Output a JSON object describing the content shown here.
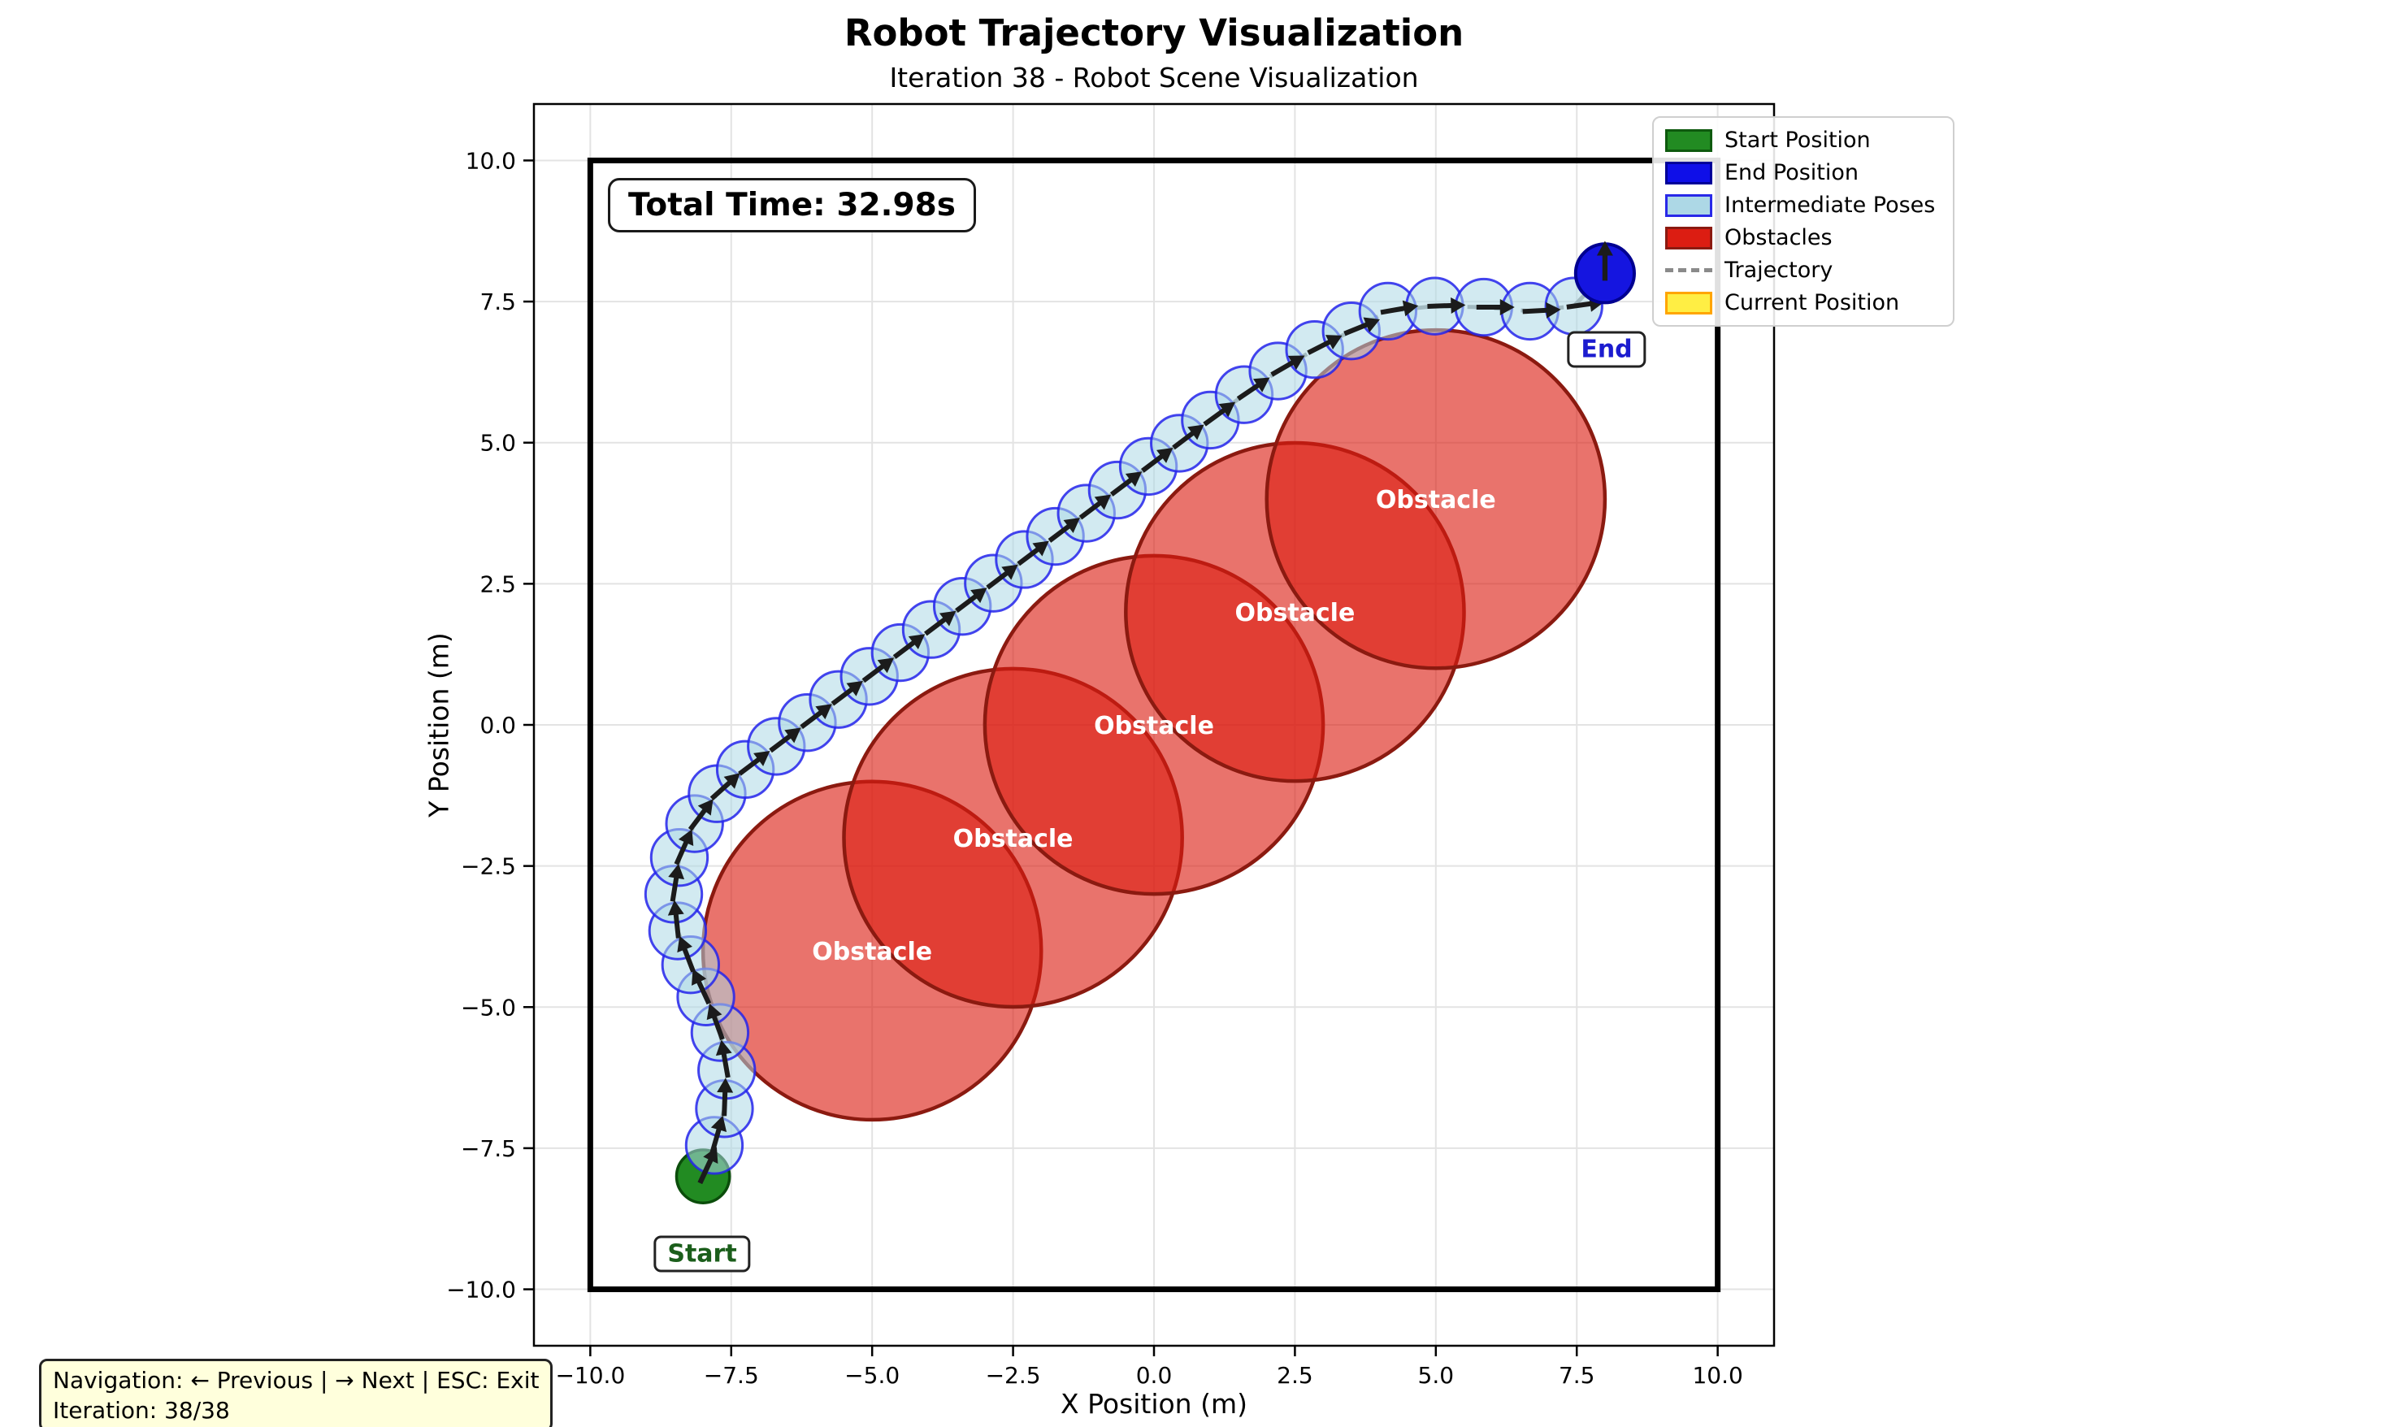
{
  "title": "Robot Trajectory Visualization",
  "subtitle": "Iteration 38 - Robot Scene Visualization",
  "annotations": {
    "total_time": "Total Time: 32.98s",
    "start_label": "Start",
    "end_label": "End",
    "obstacle_label": "Obstacle"
  },
  "navigation": {
    "line1": "Navigation: ← Previous | → Next | ESC: Exit",
    "line2": "Iteration: 38/38"
  },
  "legend": {
    "items": [
      {
        "label": "Start Position",
        "type": "patch",
        "fill": "#228B22",
        "stroke": "#0E5A0E"
      },
      {
        "label": "End Position",
        "type": "patch",
        "fill": "#0F0FE8",
        "stroke": "#000099"
      },
      {
        "label": "Intermediate Poses",
        "type": "patch",
        "fill": "#ADD8E6",
        "stroke": "#2929E8"
      },
      {
        "label": "Obstacles",
        "type": "patch",
        "fill": "#DC1D12",
        "stroke": "#8B1A10"
      },
      {
        "label": "Trajectory",
        "type": "dash",
        "fill": "",
        "stroke": "#8a8a8a"
      },
      {
        "label": "Current Position",
        "type": "patch",
        "fill": "#FFEE44",
        "stroke": "#FFA500"
      }
    ]
  },
  "colors": {
    "grid": "#E3E3E3",
    "frame": "#000000",
    "boundary": "#000000",
    "obstacle_fill": "rgba(219,29,18,0.62)",
    "obstacle_stroke": "#8B1A10",
    "trajectory": "#969696",
    "pose_fill": "rgba(173,216,230,0.55)",
    "pose_stroke": "rgba(35,35,235,0.85)",
    "arrow": "#1b1b1b",
    "start_fill": "#228B22",
    "start_stroke": "#0B4D0B",
    "end_fill": "#1515E0",
    "end_stroke": "#000090",
    "tick_text": "#000000"
  },
  "chart_data": {
    "type": "scatter",
    "xlabel": "X Position (m)",
    "ylabel": "Y Position (m)",
    "xlim": [
      -11,
      11
    ],
    "ylim": [
      -11,
      11
    ],
    "grid": true,
    "xticks": [
      {
        "value": -10.0,
        "label": "−10.0"
      },
      {
        "value": -7.5,
        "label": "−7.5"
      },
      {
        "value": -5.0,
        "label": "−5.0"
      },
      {
        "value": -2.5,
        "label": "−2.5"
      },
      {
        "value": 0.0,
        "label": "0.0"
      },
      {
        "value": 2.5,
        "label": "2.5"
      },
      {
        "value": 5.0,
        "label": "5.0"
      },
      {
        "value": 7.5,
        "label": "7.5"
      },
      {
        "value": 10.0,
        "label": "10.0"
      }
    ],
    "yticks": [
      {
        "value": -10.0,
        "label": "−10.0"
      },
      {
        "value": -7.5,
        "label": "−7.5"
      },
      {
        "value": -5.0,
        "label": "−5.0"
      },
      {
        "value": -2.5,
        "label": "−2.5"
      },
      {
        "value": 0.0,
        "label": "0.0"
      },
      {
        "value": 2.5,
        "label": "2.5"
      },
      {
        "value": 5.0,
        "label": "5.0"
      },
      {
        "value": 7.5,
        "label": "7.5"
      },
      {
        "value": 10.0,
        "label": "10.0"
      }
    ],
    "workspace_boundary": {
      "xmin": -10,
      "ymin": -10,
      "xmax": 10,
      "ymax": 10
    },
    "robot_radius": 0.5,
    "start": {
      "x": -8,
      "y": -8,
      "heading_deg": 65
    },
    "end": {
      "x": 8,
      "y": 8,
      "heading_deg": 90
    },
    "obstacles": [
      {
        "x": -5.0,
        "y": -4.0,
        "radius": 3.0
      },
      {
        "x": -2.5,
        "y": -2.0,
        "radius": 3.0
      },
      {
        "x": 0.0,
        "y": 0.0,
        "radius": 3.0
      },
      {
        "x": 2.5,
        "y": 2.0,
        "radius": 3.0
      },
      {
        "x": 5.0,
        "y": 4.0,
        "radius": 3.0
      }
    ],
    "intermediate_poses": [
      [
        -7.8,
        -7.45,
        74
      ],
      [
        -7.62,
        -6.8,
        88
      ],
      [
        -7.58,
        -6.12,
        100
      ],
      [
        -7.7,
        -5.45,
        110
      ],
      [
        -7.95,
        -4.82,
        115
      ],
      [
        -8.22,
        -4.25,
        111
      ],
      [
        -8.45,
        -3.65,
        96
      ],
      [
        -8.52,
        -3.0,
        81
      ],
      [
        -8.42,
        -2.35,
        66
      ],
      [
        -8.15,
        -1.75,
        53
      ],
      [
        -7.75,
        -1.22,
        42
      ],
      [
        -7.25,
        -0.79,
        37
      ],
      [
        -6.7,
        -0.38,
        37
      ],
      [
        -6.15,
        0.04,
        37
      ],
      [
        -5.6,
        0.45,
        37
      ],
      [
        -5.05,
        0.86,
        37
      ],
      [
        -4.5,
        1.28,
        37
      ],
      [
        -3.95,
        1.69,
        37
      ],
      [
        -3.4,
        2.1,
        37
      ],
      [
        -2.85,
        2.51,
        37
      ],
      [
        -2.3,
        2.93,
        37
      ],
      [
        -1.75,
        3.34,
        37
      ],
      [
        -1.2,
        3.75,
        37
      ],
      [
        -0.65,
        4.16,
        37
      ],
      [
        -0.1,
        4.58,
        37
      ],
      [
        0.45,
        4.99,
        37
      ],
      [
        1.0,
        5.4,
        36
      ],
      [
        1.6,
        5.85,
        34
      ],
      [
        2.2,
        6.27,
        30
      ],
      [
        2.85,
        6.65,
        27
      ],
      [
        3.5,
        6.98,
        22
      ],
      [
        4.15,
        7.33,
        10
      ],
      [
        4.98,
        7.42,
        2
      ],
      [
        5.85,
        7.4,
        0
      ],
      [
        6.67,
        7.33,
        3
      ],
      [
        7.45,
        7.42,
        8
      ]
    ]
  }
}
